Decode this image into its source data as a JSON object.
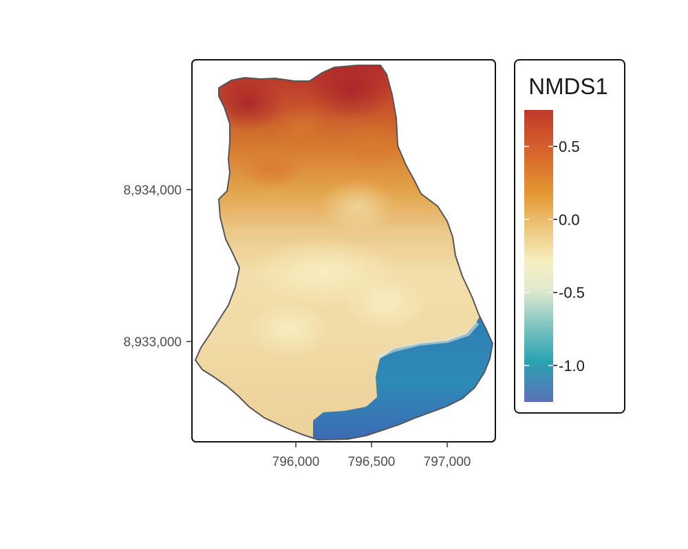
{
  "map": {
    "axes": {
      "x_ticks": [
        {
          "value": 796000,
          "label": "796,000"
        },
        {
          "value": 796500,
          "label": "796,500"
        },
        {
          "value": 797000,
          "label": "797,000"
        }
      ],
      "y_ticks": [
        {
          "value": 8934000,
          "label": "8,934,000"
        },
        {
          "value": 8933000,
          "label": "8,933,000"
        }
      ]
    },
    "legend": {
      "title": "NMDS1",
      "range": [
        -1.25,
        0.75
      ],
      "ticks": [
        {
          "value": 0.5,
          "label": "0.5"
        },
        {
          "value": 0.0,
          "label": "0.0"
        },
        {
          "value": -0.5,
          "label": "-0.5"
        },
        {
          "value": -1.0,
          "label": "-1.0"
        }
      ],
      "colors": [
        "#c0392b",
        "#e0892e",
        "#f6edb9",
        "#2aa3b2",
        "#4a6fb5"
      ]
    }
  }
}
